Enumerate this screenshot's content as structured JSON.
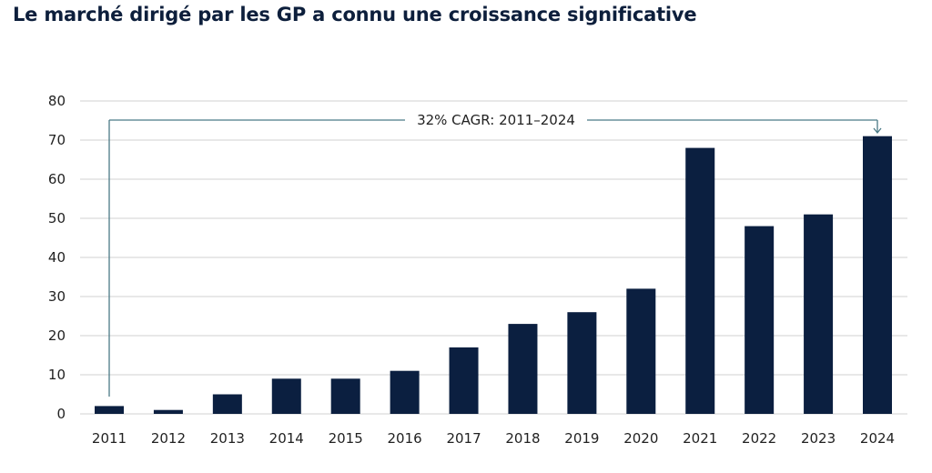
{
  "chart_data": {
    "type": "bar",
    "title": "Le marché dirigé par les GP a connu une croissance significative",
    "xlabel": "",
    "ylabel": "",
    "categories": [
      "2011",
      "2012",
      "2013",
      "2014",
      "2015",
      "2016",
      "2017",
      "2018",
      "2019",
      "2020",
      "2021",
      "2022",
      "2023",
      "2024"
    ],
    "values": [
      2,
      1,
      5,
      9,
      9,
      11,
      17,
      23,
      26,
      32,
      68,
      48,
      51,
      71
    ],
    "ylim": [
      0,
      80
    ],
    "yticks": [
      0,
      10,
      20,
      30,
      40,
      50,
      60,
      70,
      80
    ],
    "grid": true,
    "annotation": {
      "text": "32% CAGR: 2011–2024",
      "from": "2011",
      "to": "2024"
    },
    "colors": {
      "bar": "#0b1f40",
      "grid": "#d0d0d0",
      "annotation_line": "#4a7a86",
      "title": "#0d1f3c"
    }
  }
}
